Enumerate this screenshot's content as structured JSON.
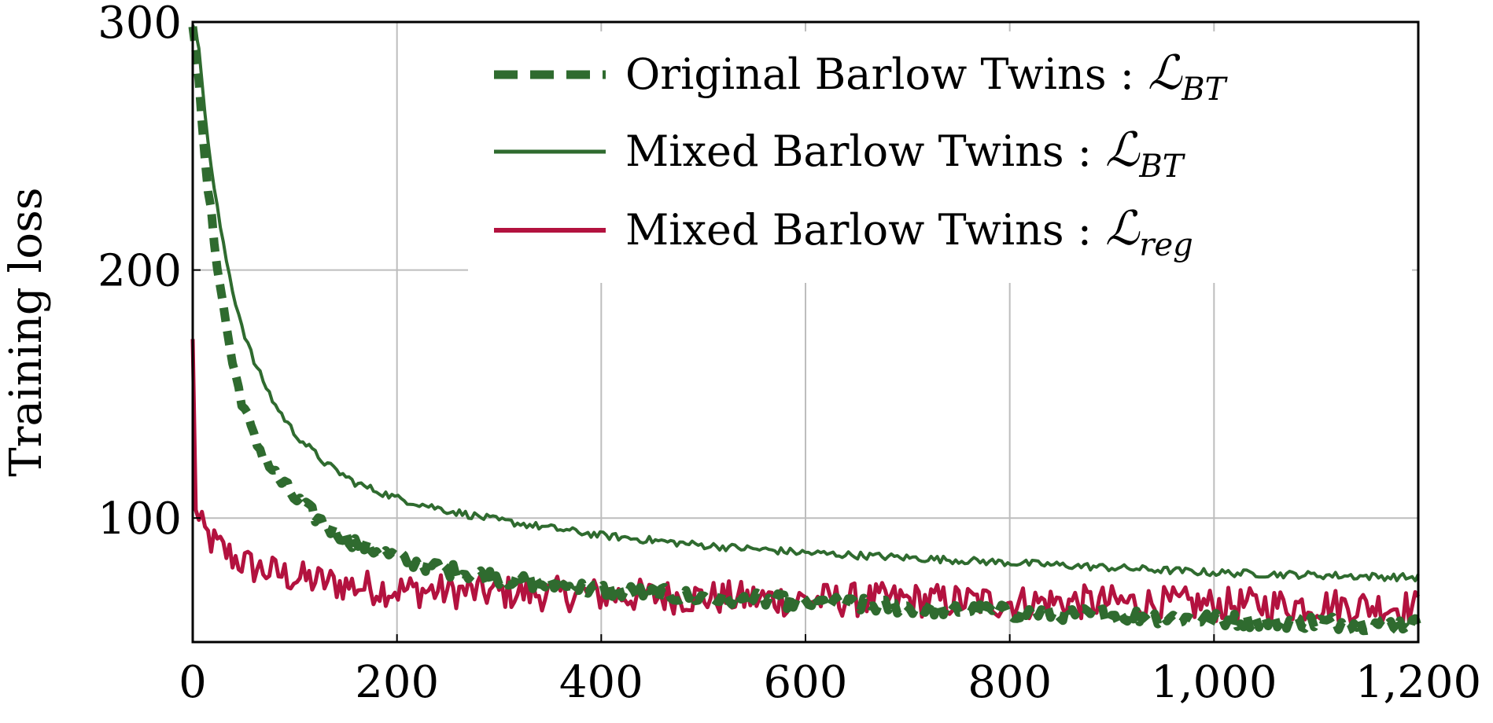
{
  "chart_data": {
    "type": "line",
    "ylabel": "Training loss",
    "xlabel": "",
    "xlim": [
      0,
      1200
    ],
    "ylim": [
      50,
      300
    ],
    "xticks": [
      0,
      200,
      400,
      600,
      800,
      1000,
      1200
    ],
    "xtick_labels": [
      "0",
      "200",
      "400",
      "600",
      "800",
      "1,000",
      "1,200"
    ],
    "yticks": [
      100,
      200,
      300
    ],
    "ytick_labels": [
      "100",
      "200",
      "300"
    ],
    "grid": true,
    "legend_position": "top-right",
    "series": [
      {
        "name": "Original Barlow Twins : ",
        "math": "ℒ",
        "sub": "BT",
        "style": "dashed",
        "color": "#2f6b2f",
        "noise": 3,
        "x": [
          0,
          5,
          10,
          20,
          30,
          40,
          50,
          60,
          80,
          100,
          130,
          160,
          200,
          250,
          300,
          350,
          400,
          500,
          600,
          700,
          800,
          900,
          1000,
          1100,
          1200
        ],
        "y": [
          300,
          285,
          250,
          215,
          185,
          160,
          145,
          132,
          118,
          108,
          97,
          90,
          84,
          79,
          76,
          73,
          71,
          68,
          66,
          64,
          62,
          61,
          59,
          58,
          57
        ]
      },
      {
        "name": "Mixed Barlow Twins : ",
        "math": "ℒ",
        "sub": "BT",
        "style": "solid",
        "color": "#2f6b2f",
        "noise": 1.5,
        "x": [
          0,
          5,
          10,
          20,
          30,
          40,
          50,
          60,
          80,
          100,
          130,
          160,
          200,
          250,
          300,
          350,
          400,
          500,
          600,
          700,
          800,
          900,
          1000,
          1100,
          1200
        ],
        "y": [
          300,
          295,
          270,
          235,
          210,
          190,
          175,
          163,
          146,
          134,
          122,
          114,
          108,
          103,
          99,
          96,
          93,
          89,
          86,
          84,
          82,
          80,
          78,
          77,
          76
        ]
      },
      {
        "name": "Mixed Barlow Twins : ",
        "math": "ℒ",
        "sub": "reg",
        "style": "solid",
        "color": "#b3123f",
        "noise": 7,
        "x": [
          0,
          2,
          5,
          10,
          20,
          40,
          60,
          100,
          150,
          200,
          300,
          400,
          500,
          600,
          700,
          800,
          900,
          1000,
          1100,
          1200
        ],
        "y": [
          170,
          110,
          98,
          95,
          90,
          84,
          80,
          76,
          73,
          71,
          70,
          69,
          68,
          67,
          67,
          66,
          66,
          65,
          65,
          64
        ]
      }
    ]
  }
}
